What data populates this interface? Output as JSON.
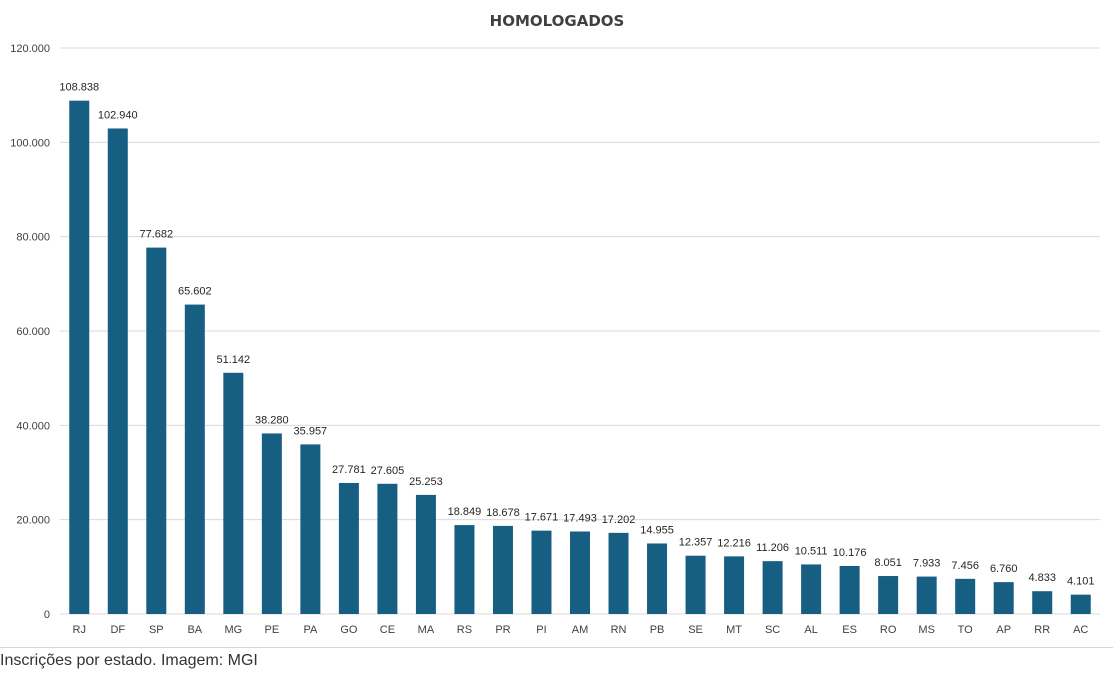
{
  "caption": "Inscrições por estado. Imagem: MGI",
  "colors": {
    "bar": "#175f82",
    "grid": "#d9d9d9",
    "text": "#404040"
  },
  "chart_data": {
    "type": "bar",
    "title": "HOMOLOGADOS",
    "xlabel": "",
    "ylabel": "",
    "ylim": [
      0,
      120000
    ],
    "y_ticks": [
      0,
      20000,
      40000,
      60000,
      80000,
      100000,
      120000
    ],
    "y_tick_labels": [
      "0",
      "20.000",
      "40.000",
      "60.000",
      "80.000",
      "100.000",
      "120.000"
    ],
    "grid": true,
    "legend": "none",
    "categories": [
      "RJ",
      "DF",
      "SP",
      "BA",
      "MG",
      "PE",
      "PA",
      "GO",
      "CE",
      "MA",
      "RS",
      "PR",
      "PI",
      "AM",
      "RN",
      "PB",
      "SE",
      "MT",
      "SC",
      "AL",
      "ES",
      "RO",
      "MS",
      "TO",
      "AP",
      "RR",
      "AC"
    ],
    "values": [
      108838,
      102940,
      77682,
      65602,
      51142,
      38280,
      35957,
      27781,
      27605,
      25253,
      18849,
      18678,
      17671,
      17493,
      17202,
      14955,
      12357,
      12216,
      11206,
      10511,
      10176,
      8051,
      7933,
      7456,
      6760,
      4833,
      4101
    ],
    "data_labels": [
      "108.838",
      "102.940",
      "77.682",
      "65.602",
      "51.142",
      "38.280",
      "35.957",
      "27.781",
      "27.605",
      "25.253",
      "18.849",
      "18.678",
      "17.671",
      "17.493",
      "17.202",
      "14.955",
      "12.357",
      "12.216",
      "11.206",
      "10.511",
      "10.176",
      "8.051",
      "7.933",
      "7.456",
      "6.760",
      "4.833",
      "4.101"
    ]
  }
}
